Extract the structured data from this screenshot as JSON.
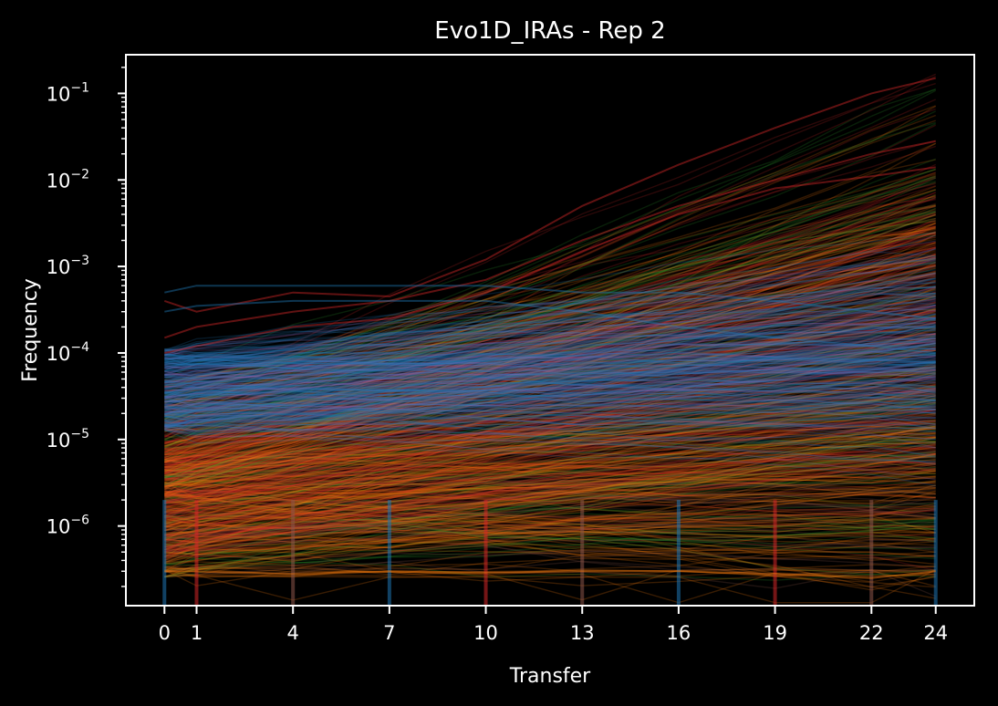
{
  "chart_data": {
    "type": "line",
    "title": "Evo1D_IRAs - Rep 2",
    "xlabel": "Transfer",
    "ylabel": "Frequency",
    "y_scale": "log",
    "x_ticks": [
      0,
      1,
      4,
      7,
      10,
      13,
      16,
      19,
      22,
      24
    ],
    "x_tick_labels": [
      "0",
      "1",
      "4",
      "7",
      "10",
      "13",
      "16",
      "19",
      "22",
      "24"
    ],
    "xlim": [
      -1.2,
      25.2
    ],
    "ylim": [
      1.2e-07,
      0.28
    ],
    "y_ticks": [
      {
        "base": "10",
        "exp": "−6",
        "value": 1e-06
      },
      {
        "base": "10",
        "exp": "−5",
        "value": 1e-05
      },
      {
        "base": "10",
        "exp": "−4",
        "value": 0.0001
      },
      {
        "base": "10",
        "exp": "−3",
        "value": 0.001
      },
      {
        "base": "10",
        "exp": "−2",
        "value": 0.01
      },
      {
        "base": "10",
        "exp": "−1",
        "value": 0.1
      }
    ],
    "background": "#000000",
    "series_colors": [
      "#1f77b4",
      "#ff7f0e",
      "#d62728",
      "#2ca02c",
      "#8c564b",
      "#9467bd"
    ],
    "series": [
      {
        "color": "#d62728",
        "x": [
          0,
          1,
          4,
          7,
          10,
          13,
          16,
          19,
          22,
          24
        ],
        "y": [
          0.0004,
          0.0003,
          0.0005,
          0.00045,
          0.0012,
          0.005,
          0.015,
          0.04,
          0.1,
          0.15
        ]
      },
      {
        "color": "#d62728",
        "x": [
          0,
          1,
          4,
          7,
          10,
          13,
          16,
          19,
          22,
          24
        ],
        "y": [
          0.00015,
          0.0002,
          0.0003,
          0.0004,
          0.0007,
          0.002,
          0.005,
          0.01,
          0.02,
          0.028
        ]
      },
      {
        "color": "#d62728",
        "x": [
          0,
          1,
          4,
          7,
          10,
          13,
          16,
          19,
          22,
          24
        ],
        "y": [
          0.0001,
          0.00012,
          0.0002,
          0.00025,
          0.0005,
          0.0015,
          0.004,
          0.008,
          0.011,
          0.014
        ]
      },
      {
        "color": "#1f77b4",
        "x": [
          0,
          1,
          4,
          7,
          10,
          13,
          16,
          19,
          22,
          24
        ],
        "y": [
          0.0005,
          0.0006,
          0.0006,
          0.0006,
          0.0006,
          0.0005,
          0.0005,
          0.0004,
          0.0003,
          0.00025
        ]
      },
      {
        "color": "#1f77b4",
        "x": [
          0,
          1,
          4,
          7,
          10,
          13,
          16,
          19,
          22,
          24
        ],
        "y": [
          0.0003,
          0.00035,
          0.0004,
          0.0004,
          0.0004,
          0.0003,
          0.0002,
          0.00015,
          0.00012,
          0.0001
        ]
      },
      {
        "color": "#ff7f0e",
        "x": [
          0,
          1,
          4,
          7,
          10,
          13,
          16,
          19,
          22,
          24
        ],
        "y": [
          3e-07,
          3e-07,
          2.8e-07,
          3e-07,
          2.9e-07,
          3e-07,
          3e-07,
          2.8e-07,
          2.5e-07,
          3e-07
        ]
      }
    ]
  }
}
